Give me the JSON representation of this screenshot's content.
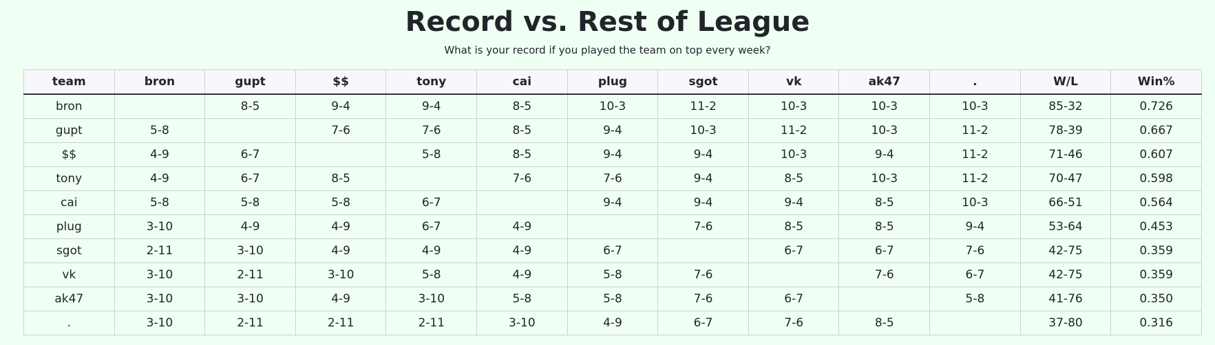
{
  "header": {
    "title": "Record vs. Rest of League",
    "subtitle": "What is your record if you played the team on top every week?"
  },
  "table": {
    "columns": [
      "team",
      "bron",
      "gupt",
      "$$",
      "tony",
      "cai",
      "plug",
      "sgot",
      "vk",
      "ak47",
      ".",
      "W/L",
      "Win%"
    ],
    "rows": [
      [
        "bron",
        null,
        "8-5",
        "9-4",
        "9-4",
        "8-5",
        "10-3",
        "11-2",
        "10-3",
        "10-3",
        "10-3",
        "85-32",
        "0.726"
      ],
      [
        "gupt",
        "5-8",
        null,
        "7-6",
        "7-6",
        "8-5",
        "9-4",
        "10-3",
        "11-2",
        "10-3",
        "11-2",
        "78-39",
        "0.667"
      ],
      [
        "$$",
        "4-9",
        "6-7",
        null,
        "5-8",
        "8-5",
        "9-4",
        "9-4",
        "10-3",
        "9-4",
        "11-2",
        "71-46",
        "0.607"
      ],
      [
        "tony",
        "4-9",
        "6-7",
        "8-5",
        null,
        "7-6",
        "7-6",
        "9-4",
        "8-5",
        "10-3",
        "11-2",
        "70-47",
        "0.598"
      ],
      [
        "cai",
        "5-8",
        "5-8",
        "5-8",
        "6-7",
        null,
        "9-4",
        "9-4",
        "9-4",
        "8-5",
        "10-3",
        "66-51",
        "0.564"
      ],
      [
        "plug",
        "3-10",
        "4-9",
        "4-9",
        "6-7",
        "4-9",
        null,
        "7-6",
        "8-5",
        "8-5",
        "9-4",
        "53-64",
        "0.453"
      ],
      [
        "sgot",
        "2-11",
        "3-10",
        "4-9",
        "4-9",
        "4-9",
        "6-7",
        null,
        "6-7",
        "6-7",
        "7-6",
        "42-75",
        "0.359"
      ],
      [
        "vk",
        "3-10",
        "2-11",
        "3-10",
        "5-8",
        "4-9",
        "5-8",
        "7-6",
        null,
        "7-6",
        "6-7",
        "42-75",
        "0.359"
      ],
      [
        "ak47",
        "3-10",
        "3-10",
        "4-9",
        "3-10",
        "5-8",
        "5-8",
        "7-6",
        "6-7",
        null,
        "5-8",
        "41-76",
        "0.350"
      ],
      [
        ".",
        "3-10",
        "2-11",
        "2-11",
        "2-11",
        "3-10",
        "4-9",
        "6-7",
        "7-6",
        "8-5",
        null,
        "37-80",
        "0.316"
      ]
    ]
  }
}
